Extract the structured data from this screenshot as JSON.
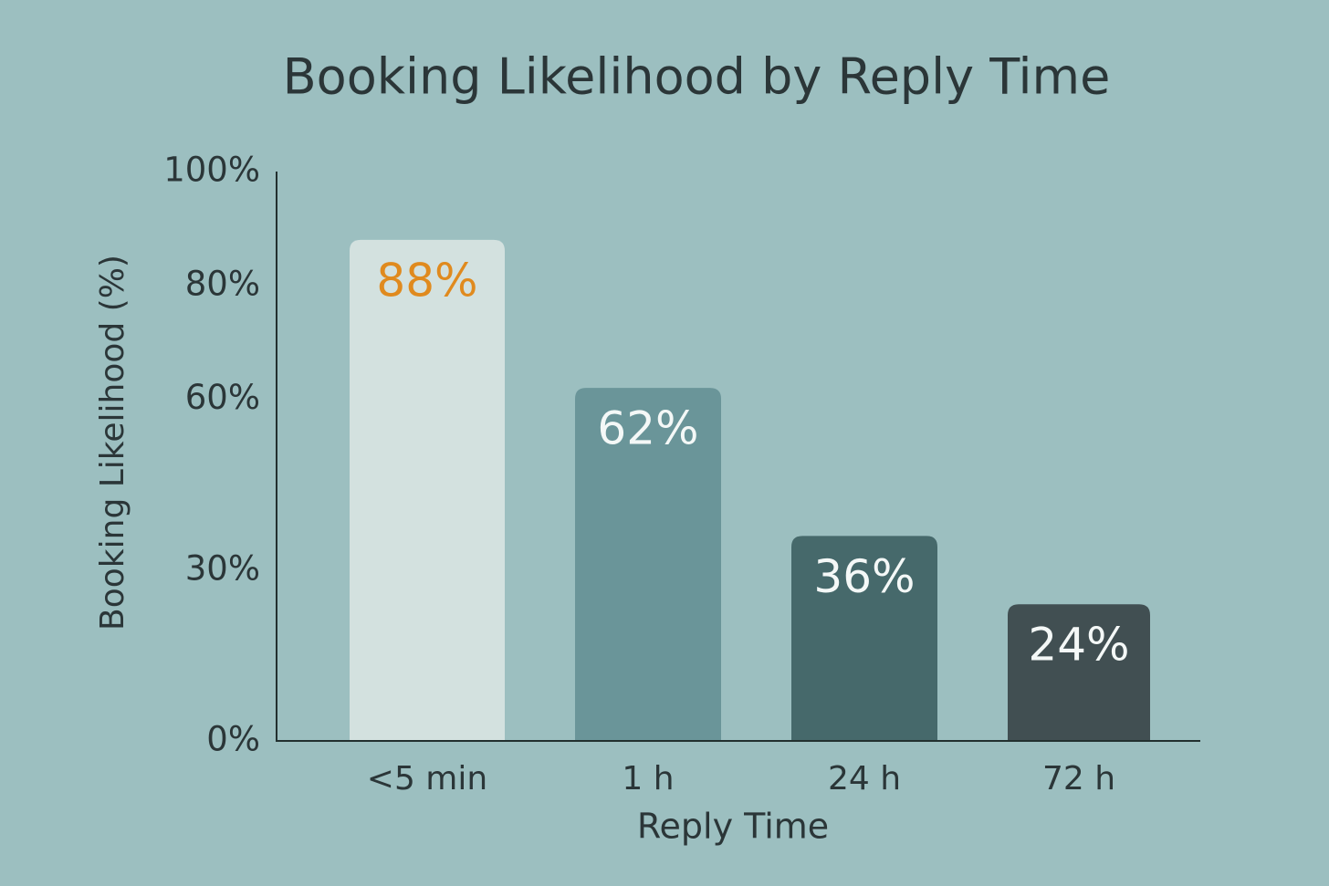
{
  "chart_data": {
    "type": "bar",
    "title": "Booking Likelihood by Reply Time",
    "x_label": "Reply Time",
    "y_label": "Booking Likelihood (%)",
    "categories": [
      "<5 min",
      "1 h",
      "24 h",
      "72 h"
    ],
    "values": [
      88,
      62,
      36,
      24
    ],
    "value_labels": [
      "88%",
      "62%",
      "36%",
      "24%"
    ],
    "colors": [
      "#d3e1df",
      "#6a9599",
      "#46696b",
      "#414f52"
    ],
    "value_label_colors": [
      "#e08a1e",
      "#f4f8f7",
      "#f4f8f7",
      "#f4f8f7"
    ],
    "ylim": [
      0,
      100
    ],
    "yticks": [
      {
        "value": 100,
        "label": "100%"
      },
      {
        "value": 80,
        "label": "80%"
      },
      {
        "value": 60,
        "label": "60%"
      },
      {
        "value": 30,
        "label": "30%"
      },
      {
        "value": 0,
        "label": "0%"
      }
    ],
    "grid": true
  }
}
